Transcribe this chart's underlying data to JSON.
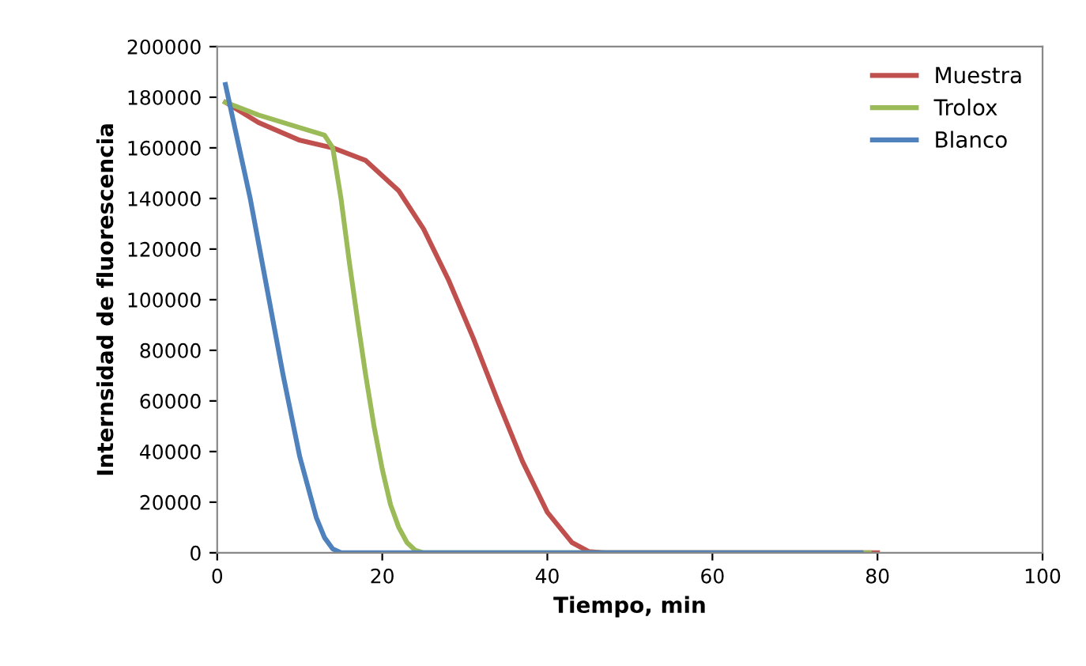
{
  "chart_data": {
    "type": "line",
    "xlabel": "Tiempo, min",
    "ylabel": "Internsidad de fluorescencia",
    "xlim": [
      0,
      100
    ],
    "xticks": [
      0,
      20,
      40,
      60,
      80,
      100
    ],
    "ylim": [
      0,
      200000
    ],
    "yticks": [
      0,
      20000,
      40000,
      60000,
      80000,
      100000,
      120000,
      140000,
      160000,
      180000,
      200000
    ],
    "grid": false,
    "legend": "top right",
    "marker": "none",
    "line_style": "solid",
    "series": [
      {
        "name": "Muestra",
        "color": "#c0504d",
        "x": [
          1,
          5,
          10,
          14,
          18,
          22,
          25,
          28,
          31,
          34,
          37,
          40,
          43,
          45,
          47,
          80
        ],
        "values": [
          178000,
          170000,
          163000,
          160000,
          155000,
          143000,
          128000,
          108000,
          85000,
          60000,
          36000,
          16000,
          4000,
          500,
          0,
          0
        ]
      },
      {
        "name": "Trolox",
        "color": "#9bbb59",
        "x": [
          1,
          5,
          10,
          13,
          14,
          15,
          16,
          17,
          18,
          19,
          20,
          21,
          22,
          23,
          24,
          25,
          79
        ],
        "values": [
          178000,
          173000,
          168000,
          165000,
          160000,
          140000,
          115000,
          92000,
          70000,
          50000,
          33000,
          19000,
          10000,
          4000,
          1000,
          0,
          0
        ]
      },
      {
        "name": "Blanco",
        "color": "#4f81bd",
        "x": [
          1,
          2,
          4,
          6,
          8,
          10,
          12,
          13,
          14,
          15,
          78
        ],
        "values": [
          185000,
          170000,
          140000,
          105000,
          70000,
          38000,
          14000,
          6000,
          1500,
          0,
          0
        ]
      }
    ]
  }
}
